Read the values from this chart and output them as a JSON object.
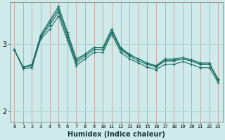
{
  "xlabel": "Humidex (Indice chaleur)",
  "background_color": "#ceeaea",
  "grid_color_h": "#b0d8d8",
  "grid_color_v": "#c8a0a0",
  "line_color": "#1a6e62",
  "xlim": [
    -0.5,
    23.5
  ],
  "ylim": [
    1.85,
    3.62
  ],
  "yticks": [
    2,
    3
  ],
  "xticks": [
    0,
    1,
    2,
    3,
    4,
    5,
    6,
    7,
    8,
    9,
    10,
    11,
    12,
    13,
    14,
    15,
    16,
    17,
    18,
    19,
    20,
    21,
    22,
    23
  ],
  "series": [
    [
      2.92,
      2.66,
      2.68,
      3.1,
      3.28,
      3.48,
      3.1,
      2.72,
      2.82,
      2.92,
      2.92,
      3.18,
      2.92,
      2.82,
      2.75,
      2.7,
      2.66,
      2.75,
      2.75,
      2.78,
      2.75,
      2.7,
      2.7,
      2.46
    ],
    [
      2.92,
      2.66,
      2.68,
      3.12,
      3.32,
      3.52,
      3.15,
      2.75,
      2.85,
      2.95,
      2.95,
      3.22,
      2.95,
      2.85,
      2.78,
      2.72,
      2.68,
      2.78,
      2.78,
      2.8,
      2.77,
      2.72,
      2.72,
      2.48
    ],
    [
      2.92,
      2.66,
      2.7,
      3.14,
      3.35,
      3.56,
      3.18,
      2.78,
      2.85,
      2.95,
      2.95,
      3.22,
      2.94,
      2.84,
      2.78,
      2.72,
      2.67,
      2.76,
      2.76,
      2.78,
      2.75,
      2.7,
      2.7,
      2.48
    ],
    [
      2.92,
      2.64,
      2.65,
      3.08,
      3.22,
      3.42,
      3.06,
      2.68,
      2.78,
      2.88,
      2.88,
      3.15,
      2.88,
      2.78,
      2.72,
      2.66,
      2.62,
      2.7,
      2.7,
      2.74,
      2.7,
      2.65,
      2.65,
      2.43
    ]
  ]
}
